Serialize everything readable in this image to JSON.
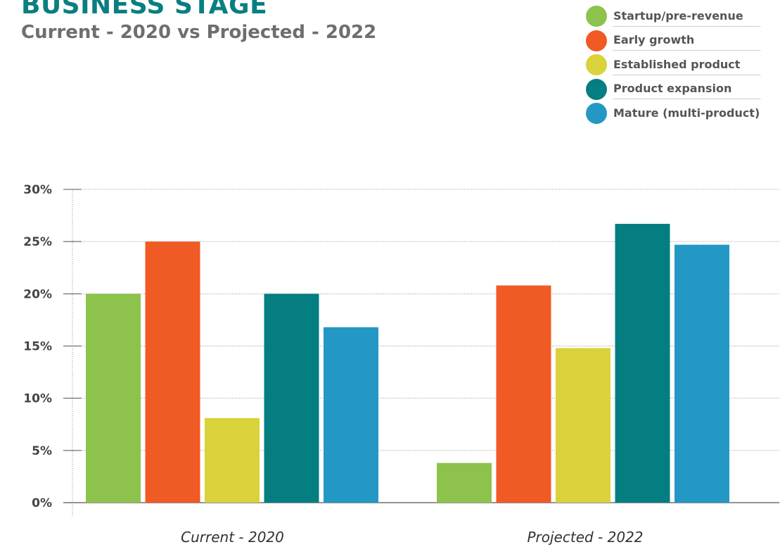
{
  "chart_data": {
    "type": "bar",
    "title": "BUSINESS STAGE",
    "subtitle": "Current - 2020 vs Projected - 2022",
    "categories": [
      "Current - 2020",
      "Projected - 2022"
    ],
    "series": [
      {
        "name": "Startup/pre-revenue",
        "color": "#8dc24c",
        "values": [
          20,
          3.8
        ]
      },
      {
        "name": "Early growth",
        "color": "#f05a24",
        "values": [
          25,
          20.8
        ]
      },
      {
        "name": "Established product",
        "color": "#d9d23a",
        "values": [
          8.1,
          14.8
        ]
      },
      {
        "name": "Product expansion",
        "color": "#047e80",
        "values": [
          20,
          26.7
        ]
      },
      {
        "name": "Mature (multi-product)",
        "color": "#2498c4",
        "values": [
          16.8,
          24.7
        ]
      }
    ],
    "ylim": [
      0,
      30
    ],
    "yticks": [
      "0%",
      "5%",
      "10%",
      "15%",
      "20%",
      "25%",
      "30%"
    ],
    "ytick_values": [
      0,
      5,
      10,
      15,
      20,
      25,
      30
    ],
    "grid": true,
    "legend_position": "top-right",
    "xlabel": "",
    "ylabel": ""
  }
}
